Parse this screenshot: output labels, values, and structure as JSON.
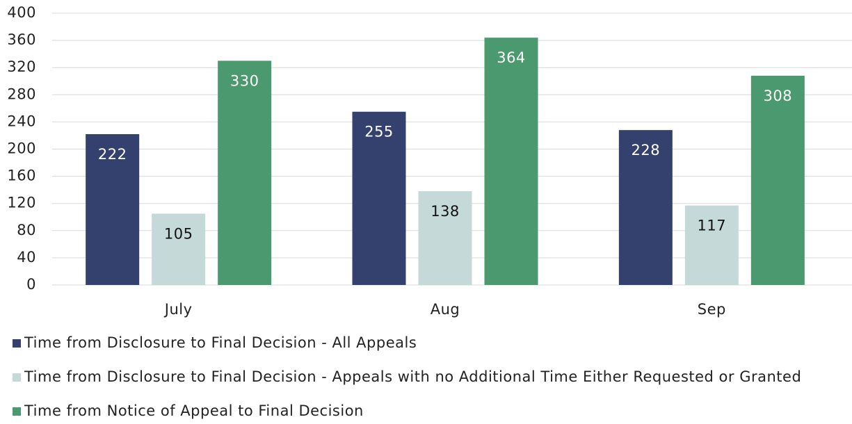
{
  "chart_data": {
    "type": "bar",
    "categories": [
      "July",
      "Aug",
      "Sep"
    ],
    "series": [
      {
        "name": "Time from Disclosure to Final Decision - All Appeals",
        "color": "#34416f",
        "values": [
          222,
          255,
          228
        ]
      },
      {
        "name": "Time from Disclosure to Final Decision - Appeals with no Additional Time Either Requested or Granted",
        "color": "#c4d9d8",
        "values": [
          105,
          138,
          117
        ]
      },
      {
        "name": "Time from Notice of Appeal to Final Decision",
        "color": "#4b9a6f",
        "values": [
          330,
          364,
          308
        ]
      }
    ],
    "ylim": [
      0,
      400
    ],
    "yticks": [
      0,
      40,
      80,
      120,
      160,
      200,
      240,
      280,
      320,
      360,
      400
    ],
    "grid": true,
    "legend": "bottom"
  }
}
